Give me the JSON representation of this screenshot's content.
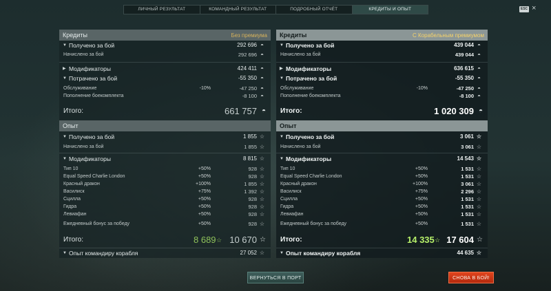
{
  "tabs": [
    "ЛИЧНЫЙ РЕЗУЛЬТАТ",
    "КОМАНДНЫЙ РЕЗУЛЬТАТ",
    "ПОДРОБНЫЙ ОТЧЁТ",
    "КРЕДИТЫ И ОПЫТ"
  ],
  "esc": "ESC",
  "left": {
    "credits_header": "Кредиты",
    "credits_prem": "Без премиума",
    "earned_label": "Получено за бой",
    "earned_val": "292 696",
    "accrued_label": "Начислено за бой",
    "accrued_val": "292 696",
    "mods_label": "Модификаторы",
    "mods_val": "424 411",
    "spent_label": "Потрачено за бой",
    "spent_val": "-55 350",
    "service_label": "Обслуживание",
    "service_pct": "-10%",
    "service_val": "-47 250",
    "ammo_label": "Пополнение боекомплекта",
    "ammo_val": "-8 100",
    "total_label": "Итого:",
    "total_val": "661 757",
    "xp_header": "Опыт",
    "xp_earned_label": "Получено за бой",
    "xp_earned_val": "1 855",
    "xp_accrued_label": "Начислено за бой",
    "xp_accrued_val": "1 855",
    "xp_mods_label": "Модификаторы",
    "xp_mods_val": "8 815",
    "xp_items": [
      {
        "label": "Тип 10",
        "pct": "+50%",
        "val": "928"
      },
      {
        "label": "Equal Speed Charlie London",
        "pct": "+50%",
        "val": "928"
      },
      {
        "label": "Красный дракон",
        "pct": "+100%",
        "val": "1 855"
      },
      {
        "label": "Василиск",
        "pct": "+75%",
        "val": "1 392"
      },
      {
        "label": "Сцилла",
        "pct": "+50%",
        "val": "928"
      },
      {
        "label": "Гидра",
        "pct": "+50%",
        "val": "928"
      },
      {
        "label": "Левиафан",
        "pct": "+50%",
        "val": "928"
      }
    ],
    "daily_label": "Ежедневный бонус за победу",
    "daily_pct": "+50%",
    "daily_val": "928",
    "xp_total_label": "Итого:",
    "xp_total_green": "8 689",
    "xp_total_val": "10 670",
    "cmd_label": "Опыт командиру корабля",
    "cmd_val": "27 052"
  },
  "right": {
    "credits_header": "Кредиты",
    "credits_prem": "С Корабельным премиумом",
    "earned_label": "Получено за бой",
    "earned_val": "439 044",
    "accrued_label": "Начислено за бой",
    "accrued_val": "439 044",
    "mods_label": "Модификаторы",
    "mods_val": "636 615",
    "spent_label": "Потрачено за бой",
    "spent_val": "-55 350",
    "service_label": "Обслуживание",
    "service_pct": "-10%",
    "service_val": "-47 250",
    "ammo_label": "Пополнение боекомплекта",
    "ammo_val": "-8 100",
    "total_label": "Итого:",
    "total_val": "1 020 309",
    "xp_header": "Опыт",
    "xp_earned_label": "Получено за бой",
    "xp_earned_val": "3 061",
    "xp_accrued_label": "Начислено за бой",
    "xp_accrued_val": "3 061",
    "xp_mods_label": "Модификаторы",
    "xp_mods_val": "14 543",
    "xp_items": [
      {
        "label": "Тип 10",
        "pct": "+50%",
        "val": "1 531"
      },
      {
        "label": "Equal Speed Charlie London",
        "pct": "+50%",
        "val": "1 531"
      },
      {
        "label": "Красный дракон",
        "pct": "+100%",
        "val": "3 061"
      },
      {
        "label": "Василиск",
        "pct": "+75%",
        "val": "2 296"
      },
      {
        "label": "Сцилла",
        "pct": "+50%",
        "val": "1 531"
      },
      {
        "label": "Гидра",
        "pct": "+50%",
        "val": "1 531"
      },
      {
        "label": "Левиафан",
        "pct": "+50%",
        "val": "1 531"
      }
    ],
    "daily_label": "Ежедневный бонус за победу",
    "daily_pct": "+50%",
    "daily_val": "1 531",
    "xp_total_label": "Итого:",
    "xp_total_green": "14 335",
    "xp_total_val": "17 604",
    "cmd_label": "Опыт командиру корабля",
    "cmd_val": "44 635"
  },
  "buttons": {
    "port": "ВЕРНУТЬСЯ В ПОРТ",
    "battle": "СНОВА В БОЙ!"
  },
  "icons": {
    "credit": "credit-coin-icon",
    "xp": "xp-star-icon",
    "expand": "triangle-icon"
  },
  "colors": {
    "premium_text": "#f7d36a",
    "xp_green": "#b6f06a",
    "battle_button": "#d23a16"
  }
}
